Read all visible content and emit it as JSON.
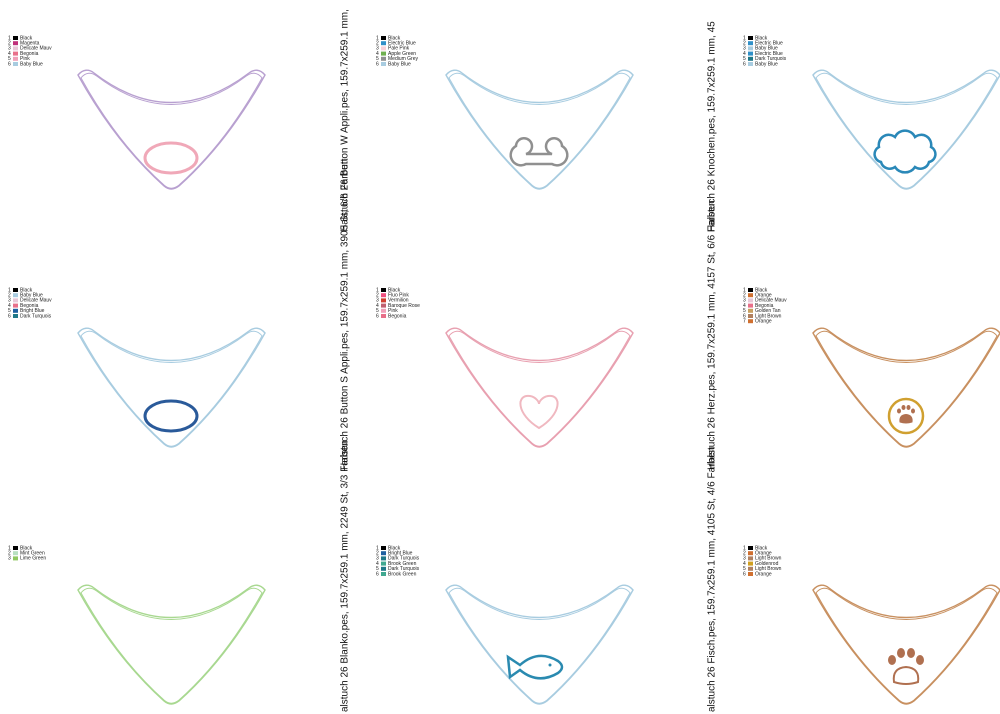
{
  "panels": [
    {
      "colors": [
        {
          "number": "1",
          "name": "Black",
          "swatch": "#000000"
        },
        {
          "number": "2",
          "name": "Magenta",
          "swatch": "#c0307a"
        },
        {
          "number": "3",
          "name": "Delicate Mauv",
          "swatch": "#e8c8d8"
        },
        {
          "number": "4",
          "name": "Begonia",
          "swatch": "#e8708a"
        },
        {
          "number": "5",
          "name": "Pink",
          "swatch": "#f0a0b8"
        },
        {
          "number": "6",
          "name": "Baby Blue",
          "swatch": "#a8cce0"
        }
      ],
      "outline": "#b8a0d0",
      "applique": "oval",
      "appliqueColor": "#f0a8b8"
    },
    {
      "colors": [
        {
          "number": "1",
          "name": "Black",
          "swatch": "#000000"
        },
        {
          "number": "2",
          "name": "Baby Blue",
          "swatch": "#a8cce0"
        },
        {
          "number": "3",
          "name": "Delicate Mauv",
          "swatch": "#e8c8d8"
        },
        {
          "number": "4",
          "name": "Begonia",
          "swatch": "#e8708a"
        },
        {
          "number": "5",
          "name": "Bright Blue",
          "swatch": "#2060a0"
        },
        {
          "number": "6",
          "name": "Dark Turquois",
          "swatch": "#207888"
        }
      ],
      "outline": "#a8cce0",
      "applique": "oval",
      "appliqueColor": "#2a5a9a"
    },
    {
      "colors": [
        {
          "number": "1",
          "name": "Black",
          "swatch": "#000000"
        },
        {
          "number": "2",
          "name": "Mint Green",
          "swatch": "#b8e0c0"
        },
        {
          "number": "3",
          "name": "Lime Green",
          "swatch": "#90c860"
        }
      ],
      "outline": "#a8d890",
      "applique": "none",
      "appliqueColor": "#a8d890"
    },
    {
      "colors": [
        {
          "number": "1",
          "name": "Black",
          "swatch": "#000000"
        },
        {
          "number": "2",
          "name": "Electric Blue",
          "swatch": "#3090c8"
        },
        {
          "number": "3",
          "name": "Pale Pink",
          "swatch": "#f8d0d8"
        },
        {
          "number": "4",
          "name": "Apple Green",
          "swatch": "#70b050"
        },
        {
          "number": "5",
          "name": "Medium Grey",
          "swatch": "#909090"
        },
        {
          "number": "6",
          "name": "Baby Blue",
          "swatch": "#a8cce0"
        }
      ],
      "outline": "#a8cce0",
      "applique": "bone",
      "appliqueColor": "#909090"
    },
    {
      "colors": [
        {
          "number": "1",
          "name": "Black",
          "swatch": "#000000"
        },
        {
          "number": "2",
          "name": "Fluo Pink",
          "swatch": "#f05080"
        },
        {
          "number": "3",
          "name": "Vermilion",
          "swatch": "#d04030"
        },
        {
          "number": "4",
          "name": "Baroque Rose",
          "swatch": "#c06070"
        },
        {
          "number": "5",
          "name": "Pink",
          "swatch": "#f0a0b8"
        },
        {
          "number": "6",
          "name": "Begonia",
          "swatch": "#e8708a"
        }
      ],
      "outline": "#e8a0b0",
      "applique": "heart",
      "appliqueColor": "#f0b8c0"
    },
    {
      "colors": [
        {
          "number": "1",
          "name": "Black",
          "swatch": "#000000"
        },
        {
          "number": "2",
          "name": "Bright Blue",
          "swatch": "#2060a0"
        },
        {
          "number": "3",
          "name": "Dark Turquois",
          "swatch": "#207888"
        },
        {
          "number": "4",
          "name": "Brook Green",
          "swatch": "#40a890"
        },
        {
          "number": "5",
          "name": "Dark Turquois",
          "swatch": "#207888"
        },
        {
          "number": "6",
          "name": "Brook Green",
          "swatch": "#40a890"
        }
      ],
      "outline": "#a8cce0",
      "applique": "fish",
      "appliqueColor": "#2a8ab0"
    },
    {
      "colors": [
        {
          "number": "1",
          "name": "Black",
          "swatch": "#000000"
        },
        {
          "number": "2",
          "name": "Electric Blue",
          "swatch": "#3090c8"
        },
        {
          "number": "3",
          "name": "Baby Blue",
          "swatch": "#a8cce0"
        },
        {
          "number": "4",
          "name": "Electric Blue",
          "swatch": "#3090c8"
        },
        {
          "number": "5",
          "name": "Dark Turquois",
          "swatch": "#207888"
        },
        {
          "number": "6",
          "name": "Baby Blue",
          "swatch": "#a8cce0"
        }
      ],
      "outline": "#a8cce0",
      "applique": "cloud",
      "appliqueColor": "#2a88b8"
    },
    {
      "colors": [
        {
          "number": "1",
          "name": "Black",
          "swatch": "#000000"
        },
        {
          "number": "2",
          "name": "Orange",
          "swatch": "#d07030"
        },
        {
          "number": "3",
          "name": "Delicate Mauv",
          "swatch": "#e8c8d8"
        },
        {
          "number": "4",
          "name": "Begonia",
          "swatch": "#e8708a"
        },
        {
          "number": "5",
          "name": "Golden Tan",
          "swatch": "#c8a060"
        },
        {
          "number": "6",
          "name": "Light Brown",
          "swatch": "#b08060"
        },
        {
          "number": "7",
          "name": "Orange",
          "swatch": "#d07030"
        }
      ],
      "outline": "#c89060",
      "applique": "pawcircle",
      "appliqueColor": "#b07050"
    },
    {
      "colors": [
        {
          "number": "1",
          "name": "Black",
          "swatch": "#000000"
        },
        {
          "number": "2",
          "name": "Orange",
          "swatch": "#d07030"
        },
        {
          "number": "3",
          "name": "Light Brown",
          "swatch": "#b08060"
        },
        {
          "number": "4",
          "name": "Goldenrod",
          "swatch": "#d0a020"
        },
        {
          "number": "5",
          "name": "Light Brown",
          "swatch": "#b08060"
        },
        {
          "number": "6",
          "name": "Orange",
          "swatch": "#d07030"
        }
      ],
      "outline": "#c89060",
      "applique": "paw",
      "appliqueColor": "#b07050"
    }
  ],
  "labels": [
    "alstuch 26 Blanko.pes, 159.7x259.1 mm, 2249 St, 3/3 Farben",
    "Halstuch 26 Button S Appli.pes, 159.7x259.1 mm, 3905 St, 6/6 Farben",
    "Halstuch 26 Button W Appli.pes, 159.7x259.1 mm,",
    "alstuch 26 Fisch.pes, 159.7x259.1 mm, 4105 St, 4/6 Farben",
    "Halstuch 26 Herz.pes, 159.7x259.1 mm, 4157 St, 6/6 Farben",
    "Halstuch 26 Knochen.pes, 159.7x259.1 mm, 45"
  ]
}
